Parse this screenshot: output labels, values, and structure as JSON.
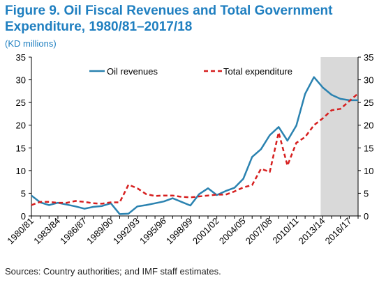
{
  "title_line1": "Figure 9. Oil Fiscal Revenues and Total Government",
  "title_line2": "Expenditure, 1980/81–2017/18",
  "unit": "(KD millions)",
  "source": "Sources: Country authorities; and IMF staff estimates.",
  "colors": {
    "oil": "#2a82b0",
    "expenditure": "#d61f1f",
    "shade": "#d9d9d9",
    "title": "#1f7fc0"
  },
  "chart_data": {
    "type": "line",
    "x": [
      "1980/81",
      "1981/82",
      "1982/83",
      "1983/84",
      "1984/85",
      "1985/86",
      "1986/87",
      "1987/88",
      "1988/89",
      "1989/90",
      "1990/91",
      "1991/92",
      "1992/93",
      "1993/94",
      "1994/95",
      "1995/96",
      "1996/97",
      "1997/98",
      "1998/99",
      "1999/00",
      "2000/01",
      "2001/02",
      "2002/03",
      "2003/04",
      "2004/05",
      "2005/06",
      "2006/07",
      "2007/08",
      "2008/09",
      "2009/10",
      "2010/11",
      "2011/12",
      "2012/13",
      "2013/14",
      "2014/15",
      "2015/16",
      "2016/17",
      "2017/18"
    ],
    "tick_labels": [
      "1980/81",
      "1983/84",
      "1986/87",
      "1989/90",
      "1992/93",
      "1995/96",
      "1998/99",
      "2001/02",
      "2004/05",
      "2007/08",
      "2010/11",
      "2013/14",
      "2016/17"
    ],
    "series": [
      {
        "name": "Oil revenues",
        "style": "solid",
        "values": [
          4.5,
          3.0,
          2.4,
          2.9,
          2.5,
          2.1,
          1.6,
          2.0,
          2.2,
          2.8,
          0.4,
          0.5,
          2.1,
          2.4,
          2.8,
          3.2,
          3.9,
          3.1,
          2.3,
          4.8,
          6.1,
          4.6,
          5.5,
          6.2,
          8.2,
          13.0,
          14.7,
          17.8,
          19.6,
          16.6,
          19.9,
          26.9,
          30.6,
          28.3,
          26.7,
          25.8,
          25.5,
          25.5
        ]
      },
      {
        "name": "Total expenditure",
        "style": "dashed",
        "values": [
          2.4,
          3.1,
          3.1,
          2.9,
          2.9,
          3.3,
          3.1,
          2.8,
          2.7,
          3.0,
          3.0,
          6.9,
          6.1,
          4.8,
          4.4,
          4.5,
          4.5,
          4.2,
          4.1,
          4.3,
          4.5,
          4.7,
          4.7,
          5.4,
          6.3,
          6.8,
          10.4,
          9.7,
          18.4,
          11.1,
          16.1,
          17.4,
          20.0,
          21.5,
          23.3,
          23.6,
          25.3,
          27.0
        ]
      }
    ],
    "y_ticks": [
      0,
      5,
      10,
      15,
      20,
      25,
      30,
      35
    ],
    "ylim": [
      0,
      35
    ],
    "shaded_region": [
      "2013/14",
      "2017/18"
    ],
    "legend_placement": "top",
    "grid": false
  }
}
